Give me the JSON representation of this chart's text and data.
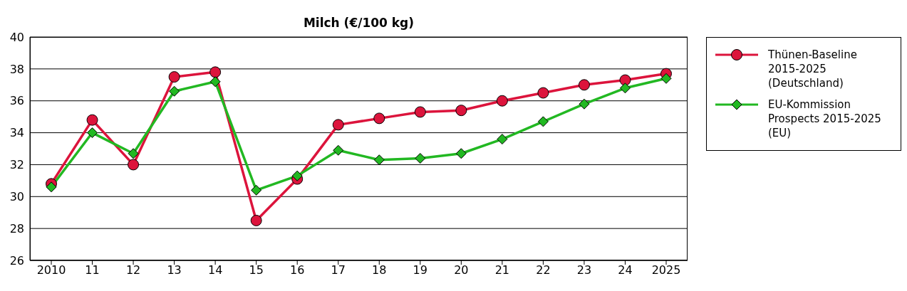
{
  "chart_data": {
    "type": "line",
    "title": "Milch (€/100 kg)",
    "categories": [
      "2010",
      "11",
      "12",
      "13",
      "14",
      "15",
      "16",
      "17",
      "18",
      "19",
      "20",
      "21",
      "22",
      "23",
      "24",
      "2025"
    ],
    "series": [
      {
        "name": "Thünen-Baseline 2015-2025 (Deutschland)",
        "color": "#dc143c",
        "marker": "circle",
        "values": [
          30.8,
          34.8,
          32.0,
          37.5,
          37.8,
          28.5,
          31.1,
          34.5,
          34.9,
          35.3,
          35.4,
          36.0,
          36.5,
          37.0,
          37.3,
          37.7
        ]
      },
      {
        "name": "EU-Kommission Prospects 2015-2025 (EU)",
        "color": "#22b822",
        "marker": "diamond",
        "values": [
          30.6,
          34.0,
          32.7,
          36.6,
          37.2,
          30.4,
          31.3,
          32.9,
          32.3,
          32.4,
          32.7,
          33.6,
          34.7,
          35.8,
          36.8,
          37.4
        ]
      }
    ],
    "ylim": [
      26,
      40
    ],
    "yticks": [
      26,
      28,
      30,
      32,
      34,
      36,
      38,
      40
    ],
    "grid": "y",
    "legend": "right",
    "line_style": "solid"
  }
}
